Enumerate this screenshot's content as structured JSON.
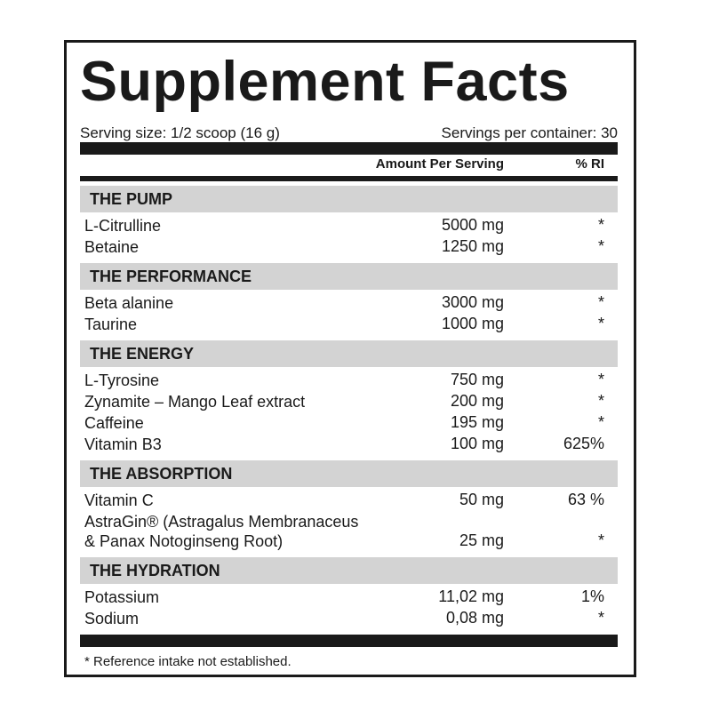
{
  "title": "Supplement Facts",
  "serving_size": "Serving size: 1/2 scoop (16 g)",
  "servings_per_container": "Servings per container: 30",
  "header": {
    "amount": "Amount Per Serving",
    "ri": "% RI"
  },
  "sections": [
    {
      "title": "THE PUMP",
      "rows": [
        {
          "name": "L-Citrulline",
          "amount": "5000 mg",
          "ri": "*"
        },
        {
          "name": "Betaine",
          "amount": "1250 mg",
          "ri": "*"
        }
      ]
    },
    {
      "title": "THE PERFORMANCE",
      "rows": [
        {
          "name": "Beta alanine",
          "amount": "3000 mg",
          "ri": "*"
        },
        {
          "name": "Taurine",
          "amount": "1000 mg",
          "ri": "*"
        }
      ]
    },
    {
      "title": "THE ENERGY",
      "rows": [
        {
          "name": "L-Tyrosine",
          "amount": "750 mg",
          "ri": "*"
        },
        {
          "name": "Zynamite – Mango Leaf extract",
          "amount": "200 mg",
          "ri": "*"
        },
        {
          "name": "Caffeine",
          "amount": "195 mg",
          "ri": "*"
        },
        {
          "name": "Vitamin B3",
          "amount": "100 mg",
          "ri": "625%"
        }
      ]
    },
    {
      "title": "THE ABSORPTION",
      "rows": [
        {
          "name": "Vitamin C",
          "amount": "50 mg",
          "ri": "63 %"
        },
        {
          "name": [
            "AstraGin® (Astragalus Membranaceus",
            "& Panax Notoginseng Root)"
          ],
          "amount": "25 mg",
          "ri": "*"
        }
      ]
    },
    {
      "title": "THE HYDRATION",
      "rows": [
        {
          "name": "Potassium",
          "amount": "11,02 mg",
          "ri": "1%"
        },
        {
          "name": "Sodium",
          "amount": "0,08 mg",
          "ri": "*"
        }
      ]
    }
  ],
  "footnote": "* Reference intake not established."
}
